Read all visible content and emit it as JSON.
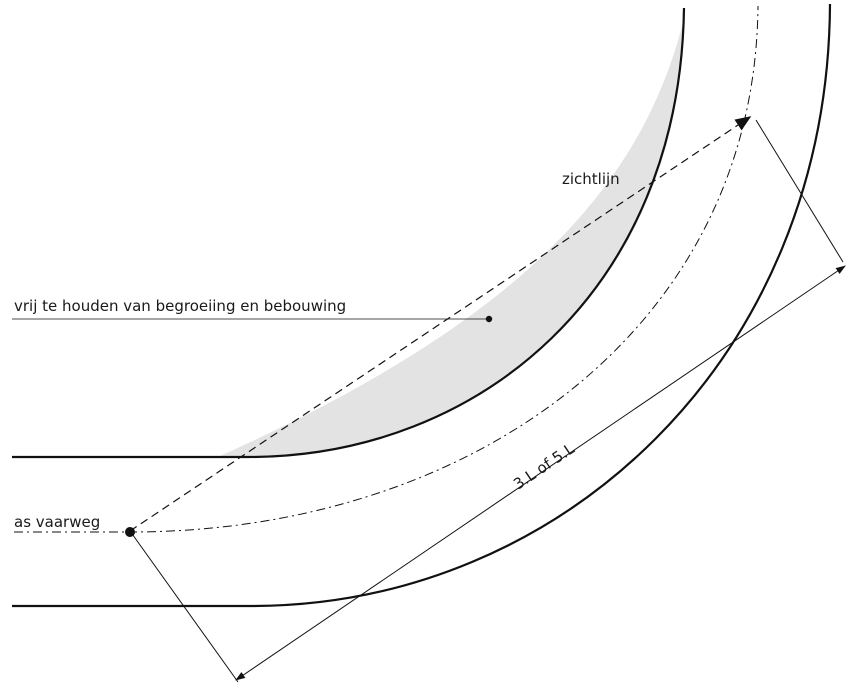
{
  "labels": {
    "sightline": "zichtlijn",
    "keep_clear": "vrij te houden van begroeiing en bebouwing",
    "waterway_axis": "as vaarweg",
    "distance": "3.L of 5.L"
  },
  "colors": {
    "line": "#111111",
    "clear_zone_fill": "#e3e3e3",
    "background": "#ffffff"
  }
}
